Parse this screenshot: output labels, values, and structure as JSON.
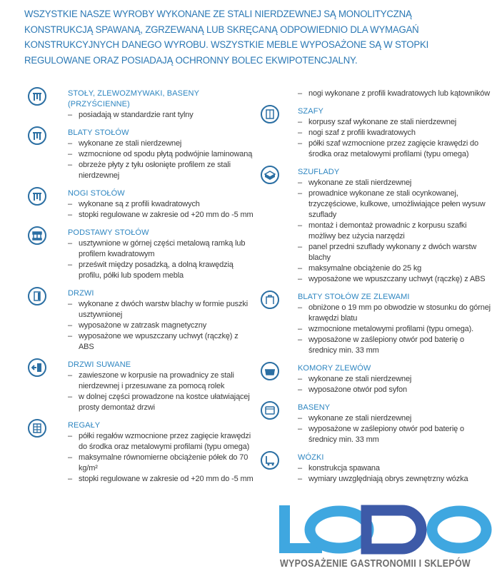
{
  "intro": "WSZYSTKIE NASZE WYROBY  WYKONANE ZE STALI NIERDZEWNEJ SĄ MONOLITYCZNĄ KONSTRUKCJĄ SPAWANĄ, ZGRZEWANĄ LUB SKRĘCANĄ ODPOWIEDNIO DLA WYMAGAŃ KONSTRUKCYJNYCH DANEGO WYROBU. WSZYSTKIE MEBLE WYPOSAŻONE SĄ W STOPKI REGULOWANE ORAZ POSIADAJĄ OCHRONNY BOLEC EKWIPOTENCJALNY.",
  "colors": {
    "text_blue": "#2b78b4",
    "heading_blue": "#2e86c1",
    "logo_light": "#3fa7e0",
    "logo_dark": "#3d5aa8"
  },
  "left": [
    {
      "icon": "table-icon",
      "title": "STOŁY, ZLEWOZMYWAKI, BASENY (PRZYŚCIENNE)",
      "items": [
        "posiadają w standardzie rant tylny"
      ]
    },
    {
      "icon": "table-top-icon",
      "title": "BLATY STOŁÓW",
      "items": [
        "wykonane ze stali nierdzewnej",
        "wzmocnione od spodu płytą podwójnie laminowaną",
        "obrzeże płyty z tyłu osłonięte profilem ze stali nierdzewnej"
      ]
    },
    {
      "icon": "table-legs-icon",
      "title": "NOGI STOŁÓW",
      "items": [
        "wykonane są z profili kwadratowych",
        "stopki regulowane w zakresie od +20 mm do -5 mm"
      ]
    },
    {
      "icon": "table-base-icon",
      "title": "PODSTAWY STOŁÓW",
      "items": [
        "usztywnione w górnej części  metalową ramką lub profilem kwadratowym",
        "prześwit między posadzką, a dolną krawędzią profilu, półki lub spodem mebla"
      ]
    },
    {
      "icon": "door-icon",
      "title": "DRZWI",
      "items": [
        "wykonane z dwóch warstw blachy w formie puszki usztywnionej",
        "wyposażone w zatrzask magnetyczny",
        "wyposażone we wpuszczany uchwyt (rączkę) z ABS"
      ]
    },
    {
      "icon": "sliding-door-icon",
      "title": "DRZWI SUWANE",
      "items": [
        "zawieszone w korpusie na prowadnicy ze stali nierdzewnej i przesuwane za pomocą rolek",
        "w dolnej części prowadzone na kostce ułatwiającej prosty demontaż drzwi"
      ]
    },
    {
      "icon": "shelving-icon",
      "title": "REGAŁY",
      "items": [
        "półki regałów wzmocnione przez zagięcie krawędzi do środka oraz metalowymi profilami (typu omega)",
        "maksymalne równomierne obciążenie półek  do 70 kg/m²",
        "stopki regulowane w zakresie od +20 mm do -5 mm"
      ]
    }
  ],
  "right": [
    {
      "icon": "",
      "title": "",
      "items": [
        "nogi wykonane z profili kwadratowych lub kątowników"
      ]
    },
    {
      "icon": "cabinet-icon",
      "title": "SZAFY",
      "items": [
        "korpusy szaf wykonane ze stali nierdzewnej",
        "nogi szaf  z profili kwadratowych",
        "półki szaf wzmocnione przez zagięcie krawędzi do środka oraz metalowymi profilami (typu omega)"
      ]
    },
    {
      "icon": "drawer-icon",
      "title": "SZUFLADY",
      "items": [
        "wykonane ze stali nierdzewnej",
        "prowadnice wykonane ze stali ocynkowanej, trzyczęściowe, kulkowe, umożliwiające pełen wysuw szuflady",
        "montaż i demontaż prowadnic z korpusu szafki możliwy bez użycia narzędzi",
        "panel przedni szuflady wykonany z dwóch warstw blachy",
        "maksymalne obciążenie do 25 kg",
        "wyposażone we wpuszczany uchwyt (rączkę) z ABS"
      ]
    },
    {
      "icon": "sink-table-icon",
      "title": "BLATY STOŁÓW ZE ZLEWAMI",
      "items": [
        "obniżone o 19 mm po obwodzie w stosunku do górnej krawędzi blatu",
        "wzmocnione  metalowymi profilami (typu omega).",
        "wyposażone w zaślepiony otwór pod baterię o średnicy min. 33 mm"
      ]
    },
    {
      "icon": "sink-bowl-icon",
      "title": "KOMORY ZLEWÓW",
      "items": [
        "wykonane ze stali nierdzewnej",
        "wyposażone otwór pod syfon"
      ]
    },
    {
      "icon": "basin-icon",
      "title": "BASENY",
      "items": [
        "wykonane ze stali nierdzewnej",
        "wyposażone w zaślepiony otwór pod baterię o średnicy min. 33 mm"
      ]
    },
    {
      "icon": "cart-icon",
      "title": "WÓZKI",
      "items": [
        "konstrukcja spawana",
        "wymiary uwzględniają obrys zewnętrzny wózka"
      ]
    }
  ],
  "logo": {
    "text": "LODO",
    "tagline": "WYPOSAŻENIE GASTRONOMII I SKLEPÓW"
  }
}
